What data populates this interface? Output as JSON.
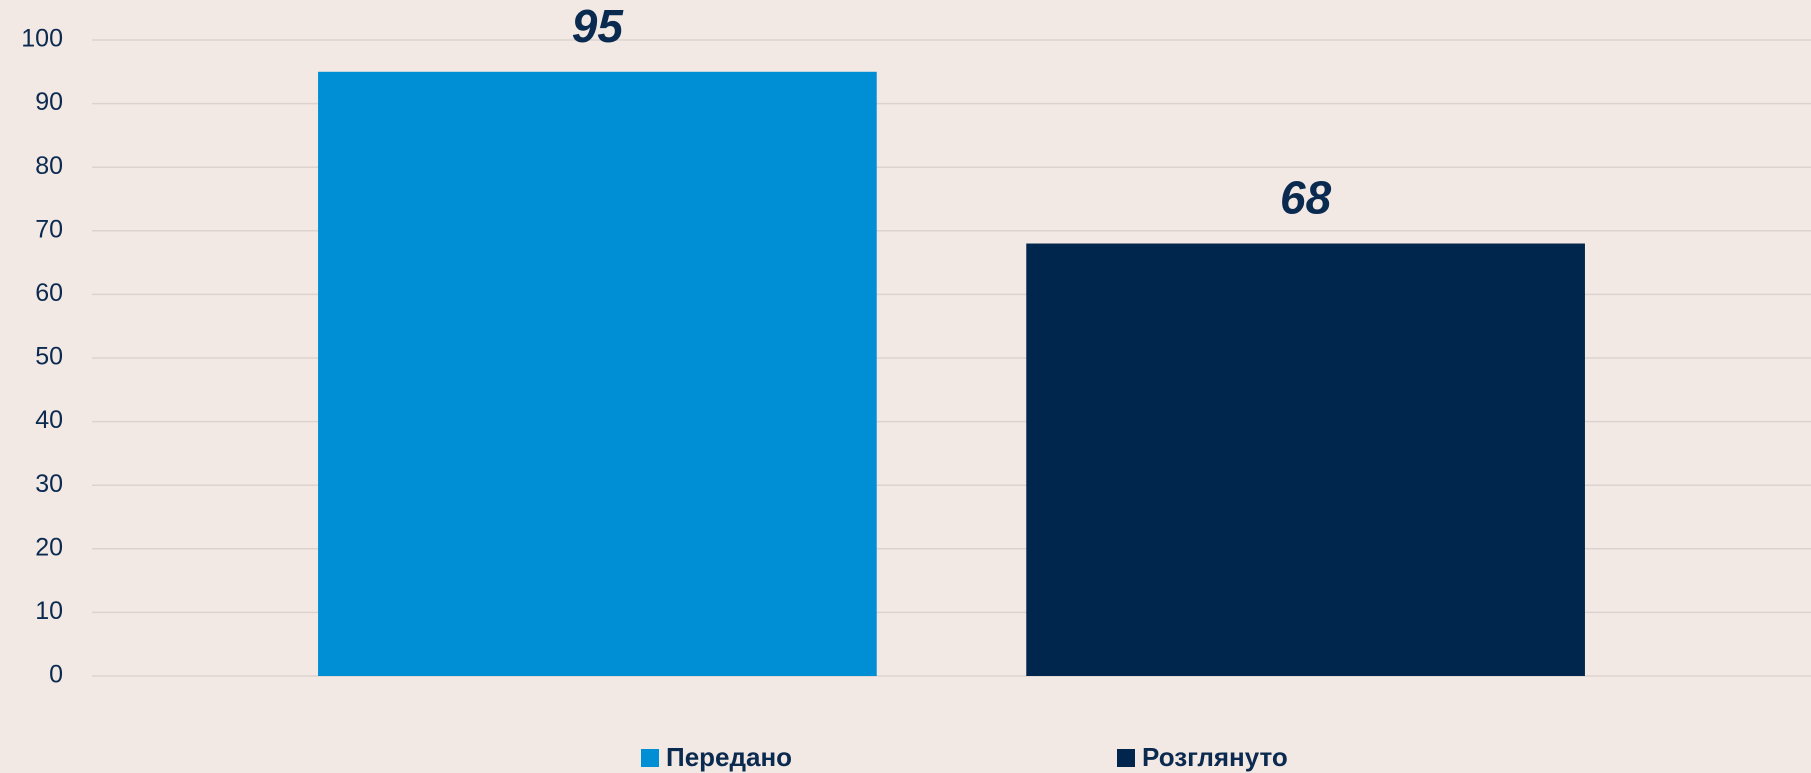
{
  "chart_data": {
    "type": "bar",
    "categories": [
      null
    ],
    "series": [
      {
        "name": "Передано",
        "color": "#008fd5",
        "values": [
          95
        ]
      },
      {
        "name": "Розглянуто",
        "color": "#00264d",
        "values": [
          68
        ]
      }
    ],
    "ylim": [
      0,
      100
    ],
    "yticks": [
      0,
      10,
      20,
      30,
      40,
      50,
      60,
      70,
      80,
      90,
      100
    ],
    "grid": true,
    "legend": "bottom"
  }
}
